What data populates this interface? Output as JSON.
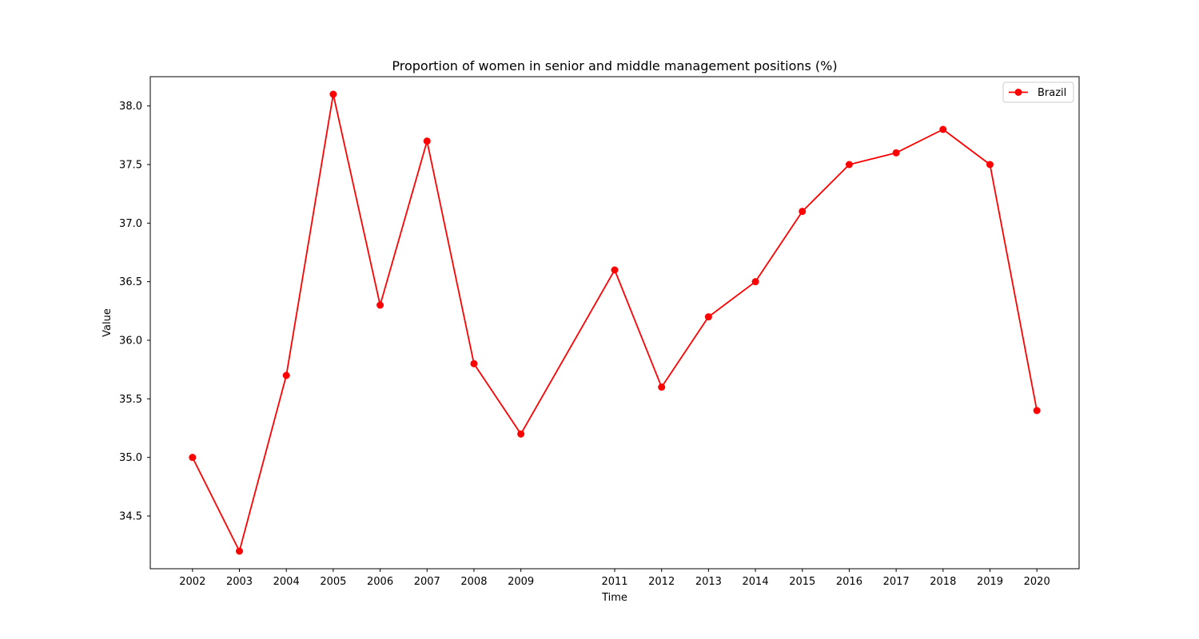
{
  "chart_data": {
    "type": "line",
    "title": "Proportion of women in senior and middle management positions (%)",
    "xlabel": "Time",
    "ylabel": "Value",
    "x": [
      2002,
      2003,
      2004,
      2005,
      2006,
      2007,
      2008,
      2009,
      2011,
      2012,
      2013,
      2014,
      2015,
      2016,
      2017,
      2018,
      2019,
      2020
    ],
    "x_tick_labels": [
      "2002",
      "2003",
      "2004",
      "2005",
      "2006",
      "2007",
      "2008",
      "2009",
      "2011",
      "2012",
      "2013",
      "2014",
      "2015",
      "2016",
      "2017",
      "2018",
      "2019",
      "2020"
    ],
    "y_ticks": [
      34.5,
      35.0,
      35.5,
      36.0,
      36.5,
      37.0,
      37.5,
      38.0
    ],
    "y_tick_labels": [
      "34.5",
      "35.0",
      "35.5",
      "36.0",
      "36.5",
      "37.0",
      "37.5",
      "38.0"
    ],
    "xlim": [
      2001.1,
      2020.9
    ],
    "ylim": [
      34.05,
      38.25
    ],
    "grid": false,
    "legend_position": "top-right",
    "series": [
      {
        "name": "Brazil",
        "color": "#ff0000",
        "marker": "circle",
        "values": [
          35.0,
          34.2,
          35.7,
          38.1,
          36.3,
          37.7,
          35.8,
          35.2,
          36.6,
          35.6,
          36.2,
          36.5,
          37.1,
          37.5,
          37.6,
          37.8,
          37.5,
          35.4
        ]
      }
    ]
  }
}
